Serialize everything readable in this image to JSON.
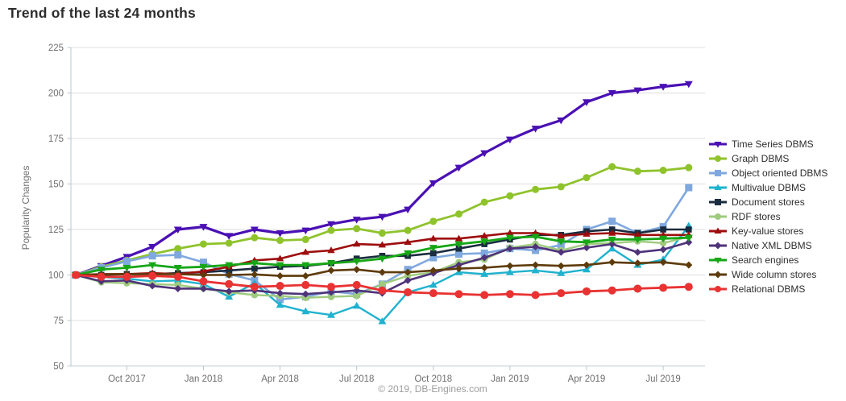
{
  "footer": {
    "copyright": "© 2019, DB-Engines.com"
  },
  "chart_data": {
    "type": "line",
    "title": "Trend of the last 24 months",
    "ylabel": "Popularity Changes",
    "ylim": [
      50,
      225
    ],
    "yticks": [
      50,
      75,
      100,
      125,
      150,
      175,
      200,
      225
    ],
    "n_points": 25,
    "x_tick_indices": [
      2,
      5,
      8,
      11,
      14,
      17,
      20,
      23
    ],
    "x_tick_labels": [
      "Oct 2017",
      "Jan 2018",
      "Apr 2018",
      "Jul 2018",
      "Oct 2018",
      "Jan 2019",
      "Apr 2019",
      "Jul 2019"
    ],
    "grid": true,
    "legend_position": "right",
    "grid_color": "#dcdcdc",
    "axis_color": "#b7c8d1",
    "series": [
      {
        "name": "Time Series DBMS",
        "color": "#4A10B4",
        "marker": "triangle-down",
        "line_width": 3.2,
        "marker_size": 4.5,
        "values": [
          100,
          105,
          110,
          115.5,
          125,
          126.5,
          121.5,
          125,
          123,
          124.5,
          128,
          130.5,
          132,
          136,
          150.5,
          159,
          167,
          174.5,
          180.5,
          185,
          195,
          200,
          201.5,
          203.5,
          205
        ]
      },
      {
        "name": "Graph DBMS",
        "color": "#8FC32C",
        "marker": "circle",
        "line_width": 2.8,
        "marker_size": 4.5,
        "values": [
          100,
          104.5,
          108,
          111.5,
          114.5,
          117,
          117.5,
          120.5,
          119,
          119.5,
          124.5,
          125.5,
          123,
          124.5,
          129.5,
          133.5,
          140,
          143.5,
          147,
          148.5,
          153.5,
          159.5,
          157,
          157.5,
          159
        ]
      },
      {
        "name": "Object oriented DBMS",
        "color": "#7FA8DE",
        "marker": "square",
        "line_width": 2.6,
        "marker_size": 4.5,
        "values": [
          100,
          104,
          107.5,
          110.5,
          111,
          107,
          100.5,
          97,
          86.5,
          88,
          91,
          89.5,
          95,
          103,
          109.5,
          111.5,
          112,
          114.5,
          113.5,
          116.5,
          125,
          129.5,
          123,
          126.5,
          148
        ]
      },
      {
        "name": "Multivalue DBMS",
        "color": "#20B2CE",
        "marker": "triangle-up",
        "line_width": 2.4,
        "marker_size": 4.5,
        "values": [
          100,
          99,
          98,
          96.5,
          97,
          95,
          88,
          95.5,
          83.5,
          80,
          78,
          83,
          74.5,
          90.5,
          94.5,
          101.5,
          100.5,
          101.5,
          102.5,
          101,
          103,
          114.5,
          105.5,
          108.5,
          127
        ]
      },
      {
        "name": "Document stores",
        "color": "#1A2C3F",
        "marker": "square",
        "line_width": 2.6,
        "marker_size": 3.8,
        "values": [
          100,
          100,
          100.5,
          100.5,
          101,
          101.5,
          102.5,
          103.5,
          104.5,
          105,
          106.5,
          109,
          110.5,
          110.5,
          112,
          114.5,
          117,
          119.5,
          122,
          122,
          124,
          125,
          123,
          125,
          125
        ]
      },
      {
        "name": "RDF stores",
        "color": "#9FCB7E",
        "marker": "circle",
        "line_width": 2.4,
        "marker_size": 4.2,
        "values": [
          100,
          96,
          95.5,
          95,
          94.5,
          92.5,
          90.5,
          89,
          88.5,
          87.5,
          88,
          88.5,
          95,
          99.5,
          101.5,
          107,
          108.5,
          115,
          117,
          113.5,
          117,
          117.5,
          118.5,
          117.5,
          121
        ]
      },
      {
        "name": "Key-value stores",
        "color": "#9D0D0D",
        "marker": "triangle-up",
        "line_width": 2.6,
        "marker_size": 4.2,
        "values": [
          100,
          100.5,
          100.5,
          101,
          100.5,
          102,
          104.5,
          108,
          109,
          112.5,
          113.5,
          117,
          116.5,
          118,
          120,
          120,
          121.5,
          123,
          123,
          121.5,
          122.5,
          123,
          122,
          122,
          122
        ]
      },
      {
        "name": "Native XML DBMS",
        "color": "#4F3379",
        "marker": "diamond",
        "line_width": 2.6,
        "marker_size": 4,
        "values": [
          100,
          96.5,
          97,
          94,
          92.5,
          92.5,
          91,
          91.5,
          90,
          89.5,
          90.5,
          91.5,
          90,
          97,
          101,
          105.5,
          109.5,
          114.5,
          115.5,
          112.5,
          115,
          117,
          112.5,
          114,
          118
        ]
      },
      {
        "name": "Search engines",
        "color": "#16A616",
        "marker": "triangle-down",
        "line_width": 2.8,
        "marker_size": 4.5,
        "values": [
          100,
          103,
          104,
          105.5,
          104,
          104.5,
          105.5,
          106.5,
          105.5,
          105.5,
          106.5,
          107.5,
          109,
          112,
          115,
          117,
          118.5,
          120.5,
          121,
          118.5,
          118,
          119.5,
          119.5,
          120,
          120.5
        ]
      },
      {
        "name": "Wide column stores",
        "color": "#5E3B0B",
        "marker": "diamond",
        "line_width": 2.6,
        "marker_size": 4,
        "values": [
          100,
          100.3,
          100.5,
          100.5,
          100.5,
          100,
          100,
          100.3,
          99.5,
          99.5,
          102.5,
          103,
          101.5,
          101.5,
          102.5,
          103.5,
          104,
          105,
          105.5,
          105,
          105.5,
          107,
          106.5,
          107,
          105.5
        ]
      },
      {
        "name": "Relational DBMS",
        "color": "#E93232",
        "marker": "circle",
        "line_width": 2.8,
        "marker_size": 5,
        "values": [
          100,
          99,
          99,
          99.5,
          99,
          96.5,
          95,
          93.5,
          94,
          94.5,
          93.5,
          94.5,
          91.5,
          90.5,
          90,
          89.5,
          89,
          89.5,
          89,
          90,
          91,
          91.5,
          92.5,
          93,
          93.5
        ]
      }
    ]
  }
}
